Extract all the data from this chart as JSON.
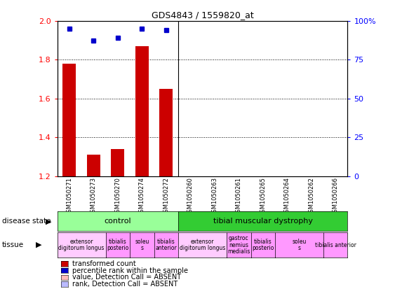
{
  "title": "GDS4843 / 1559820_at",
  "samples": [
    "GSM1050271",
    "GSM1050273",
    "GSM1050270",
    "GSM1050274",
    "GSM1050272",
    "GSM1050260",
    "GSM1050263",
    "GSM1050261",
    "GSM1050265",
    "GSM1050264",
    "GSM1050262",
    "GSM1050266"
  ],
  "bar_values": [
    1.78,
    1.31,
    1.34,
    1.87,
    1.65,
    null,
    null,
    null,
    null,
    null,
    null,
    null
  ],
  "dot_values_pct": [
    95,
    87,
    89,
    95,
    94,
    null,
    null,
    null,
    null,
    null,
    null,
    null
  ],
  "ylim_left": [
    1.2,
    2.0
  ],
  "ylim_right": [
    0,
    100
  ],
  "yticks_left": [
    1.2,
    1.4,
    1.6,
    1.8,
    2.0
  ],
  "yticks_right": [
    0,
    25,
    50,
    75,
    100
  ],
  "bar_color": "#cc0000",
  "dot_color": "#0000cc",
  "bg_color": "#ffffff",
  "disease_state_control_color": "#99ff99",
  "disease_state_dystrophy_color": "#33cc33",
  "tissue_groups": [
    {
      "start": 0,
      "end": 1,
      "label": "extensor\ndigitorum longus",
      "color": "#ffccff"
    },
    {
      "start": 2,
      "end": 2,
      "label": "tibialis\nposterio",
      "color": "#ff99ff"
    },
    {
      "start": 3,
      "end": 3,
      "label": "soleu\ns",
      "color": "#ff99ff"
    },
    {
      "start": 4,
      "end": 4,
      "label": "tibialis\nanterior",
      "color": "#ff99ff"
    },
    {
      "start": 5,
      "end": 6,
      "label": "extensor\ndigitorum longus",
      "color": "#ffccff"
    },
    {
      "start": 7,
      "end": 7,
      "label": "gastroc\nnemius\nmedialis",
      "color": "#ff99ff"
    },
    {
      "start": 8,
      "end": 8,
      "label": "tibialis\nposterio",
      "color": "#ff99ff"
    },
    {
      "start": 9,
      "end": 10,
      "label": "soleu\ns",
      "color": "#ff99ff"
    },
    {
      "start": 11,
      "end": 11,
      "label": "tibialis anterior",
      "color": "#ff99ff"
    }
  ],
  "n_samples": 12,
  "legend_items": [
    {
      "color": "#cc0000",
      "label": "transformed count"
    },
    {
      "color": "#0000cc",
      "label": "percentile rank within the sample"
    },
    {
      "color": "#ffbbbb",
      "label": "value, Detection Call = ABSENT"
    },
    {
      "color": "#bbbbff",
      "label": "rank, Detection Call = ABSENT"
    }
  ]
}
